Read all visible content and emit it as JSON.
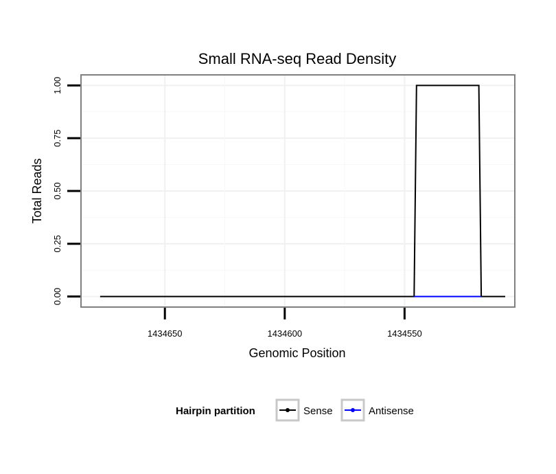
{
  "chart_data": {
    "type": "line",
    "title": "Small RNA-seq Read Density",
    "xlabel": "Genomic Position",
    "ylabel": "Total Reads",
    "x_reversed": true,
    "xlim": [
      1434685,
      1434504
    ],
    "ylim": [
      -0.05,
      1.05
    ],
    "x_ticks": [
      1434650,
      1434600,
      1434550
    ],
    "x_tick_labels": [
      "1434650",
      "1434600",
      "1434550"
    ],
    "y_ticks": [
      0,
      0.25,
      0.5,
      0.75,
      1.0
    ],
    "y_tick_labels": [
      "0.00",
      "0.25",
      "0.50",
      "0.75",
      "1.00"
    ],
    "grid": true,
    "legend": {
      "title": "Hairpin partition",
      "position": "bottom",
      "entries": [
        {
          "label": "Sense",
          "color": "#000000"
        },
        {
          "label": "Antisense",
          "color": "#0000ff"
        }
      ]
    },
    "series": [
      {
        "name": "Sense",
        "color": "#000000",
        "x": [
          1434677,
          1434546,
          1434545,
          1434519,
          1434518,
          1434508
        ],
        "y": [
          0,
          0,
          1,
          1,
          0,
          0
        ]
      },
      {
        "name": "Antisense",
        "color": "#0000ff",
        "x": [
          1434546,
          1434518
        ],
        "y": [
          0,
          0
        ]
      }
    ]
  }
}
